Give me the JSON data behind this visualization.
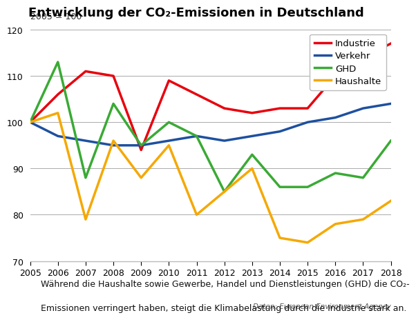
{
  "title": "Entwicklung der CO₂-Emissionen in Deutschland",
  "subtitle": "2005 = 100",
  "years": [
    2005,
    2006,
    2007,
    2008,
    2009,
    2010,
    2011,
    2012,
    2013,
    2014,
    2015,
    2016,
    2017,
    2018
  ],
  "industrie": [
    100,
    106,
    111,
    110,
    94,
    109,
    106,
    103,
    102,
    103,
    103,
    110,
    114,
    117
  ],
  "verkehr": [
    100,
    97,
    96,
    95,
    95,
    96,
    97,
    96,
    97,
    98,
    100,
    101,
    103,
    104
  ],
  "ghd": [
    100,
    113,
    88,
    104,
    95,
    100,
    97,
    85,
    93,
    86,
    86,
    89,
    88,
    96
  ],
  "haushalte": [
    100,
    102,
    79,
    96,
    88,
    95,
    80,
    85,
    90,
    75,
    74,
    78,
    79,
    83
  ],
  "colors": {
    "industrie": "#e8000d",
    "verkehr": "#1e50a0",
    "ghd": "#3aaa35",
    "haushalte": "#f5a800"
  },
  "ylim": [
    70,
    120
  ],
  "yticks": [
    70,
    80,
    90,
    100,
    110,
    120
  ],
  "xlabel": "",
  "source_text": "Daten: European Environment Agency",
  "footer_text": "Während die Haushalte sowie Gewerbe, Handel und Dienstleistungen (GHD) die CO₂-\nEmissionen verringert haben, steigt die Klimabelastung durch die Industrie stark an.",
  "legend_labels": [
    "Industrie",
    "Verkehr",
    "GHD",
    "Haushalte"
  ],
  "linewidth": 2.5,
  "bg_color": "#ffffff",
  "footer_bg": "#e8e8e8"
}
